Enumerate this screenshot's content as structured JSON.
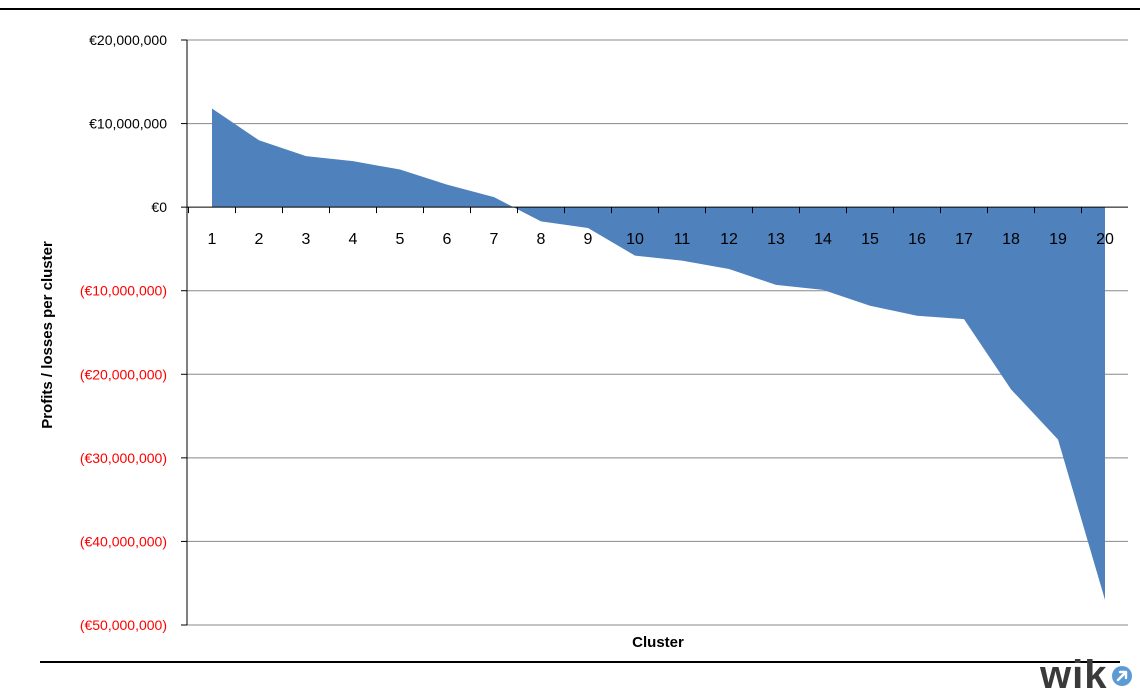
{
  "chart_data": {
    "type": "area",
    "categories": [
      "1",
      "2",
      "3",
      "4",
      "5",
      "6",
      "7",
      "8",
      "9",
      "10",
      "11",
      "12",
      "13",
      "14",
      "15",
      "16",
      "17",
      "18",
      "19",
      "20"
    ],
    "values": [
      11800000,
      8000000,
      6100000,
      5500000,
      4500000,
      2700000,
      1200000,
      -1700000,
      -2500000,
      -5800000,
      -6400000,
      -7400000,
      -9300000,
      -9900000,
      -11800000,
      -13000000,
      -13400000,
      -21800000,
      -27800000,
      -47000000
    ],
    "ylim": [
      -50000000,
      20000000
    ],
    "y_ticks": [
      20000000,
      10000000,
      0,
      -10000000,
      -20000000,
      -30000000,
      -40000000,
      -50000000
    ],
    "y_tick_labels": [
      "€20,000,000",
      "€10,000,000",
      "€0",
      "(€10,000,000)",
      "(€20,000,000)",
      "(€30,000,000)",
      "(€40,000,000)",
      "(€50,000,000)"
    ],
    "xlabel": "Cluster",
    "ylabel": "Profits / losses per cluster",
    "grid": true,
    "colors": {
      "area": "#4F81BD",
      "positive_label": "#000000",
      "negative_label": "#FF0000",
      "gridline": "#888888"
    }
  },
  "logo": {
    "text": "wik",
    "color": "#3a3a3a",
    "accent": "#5b9bd5"
  }
}
